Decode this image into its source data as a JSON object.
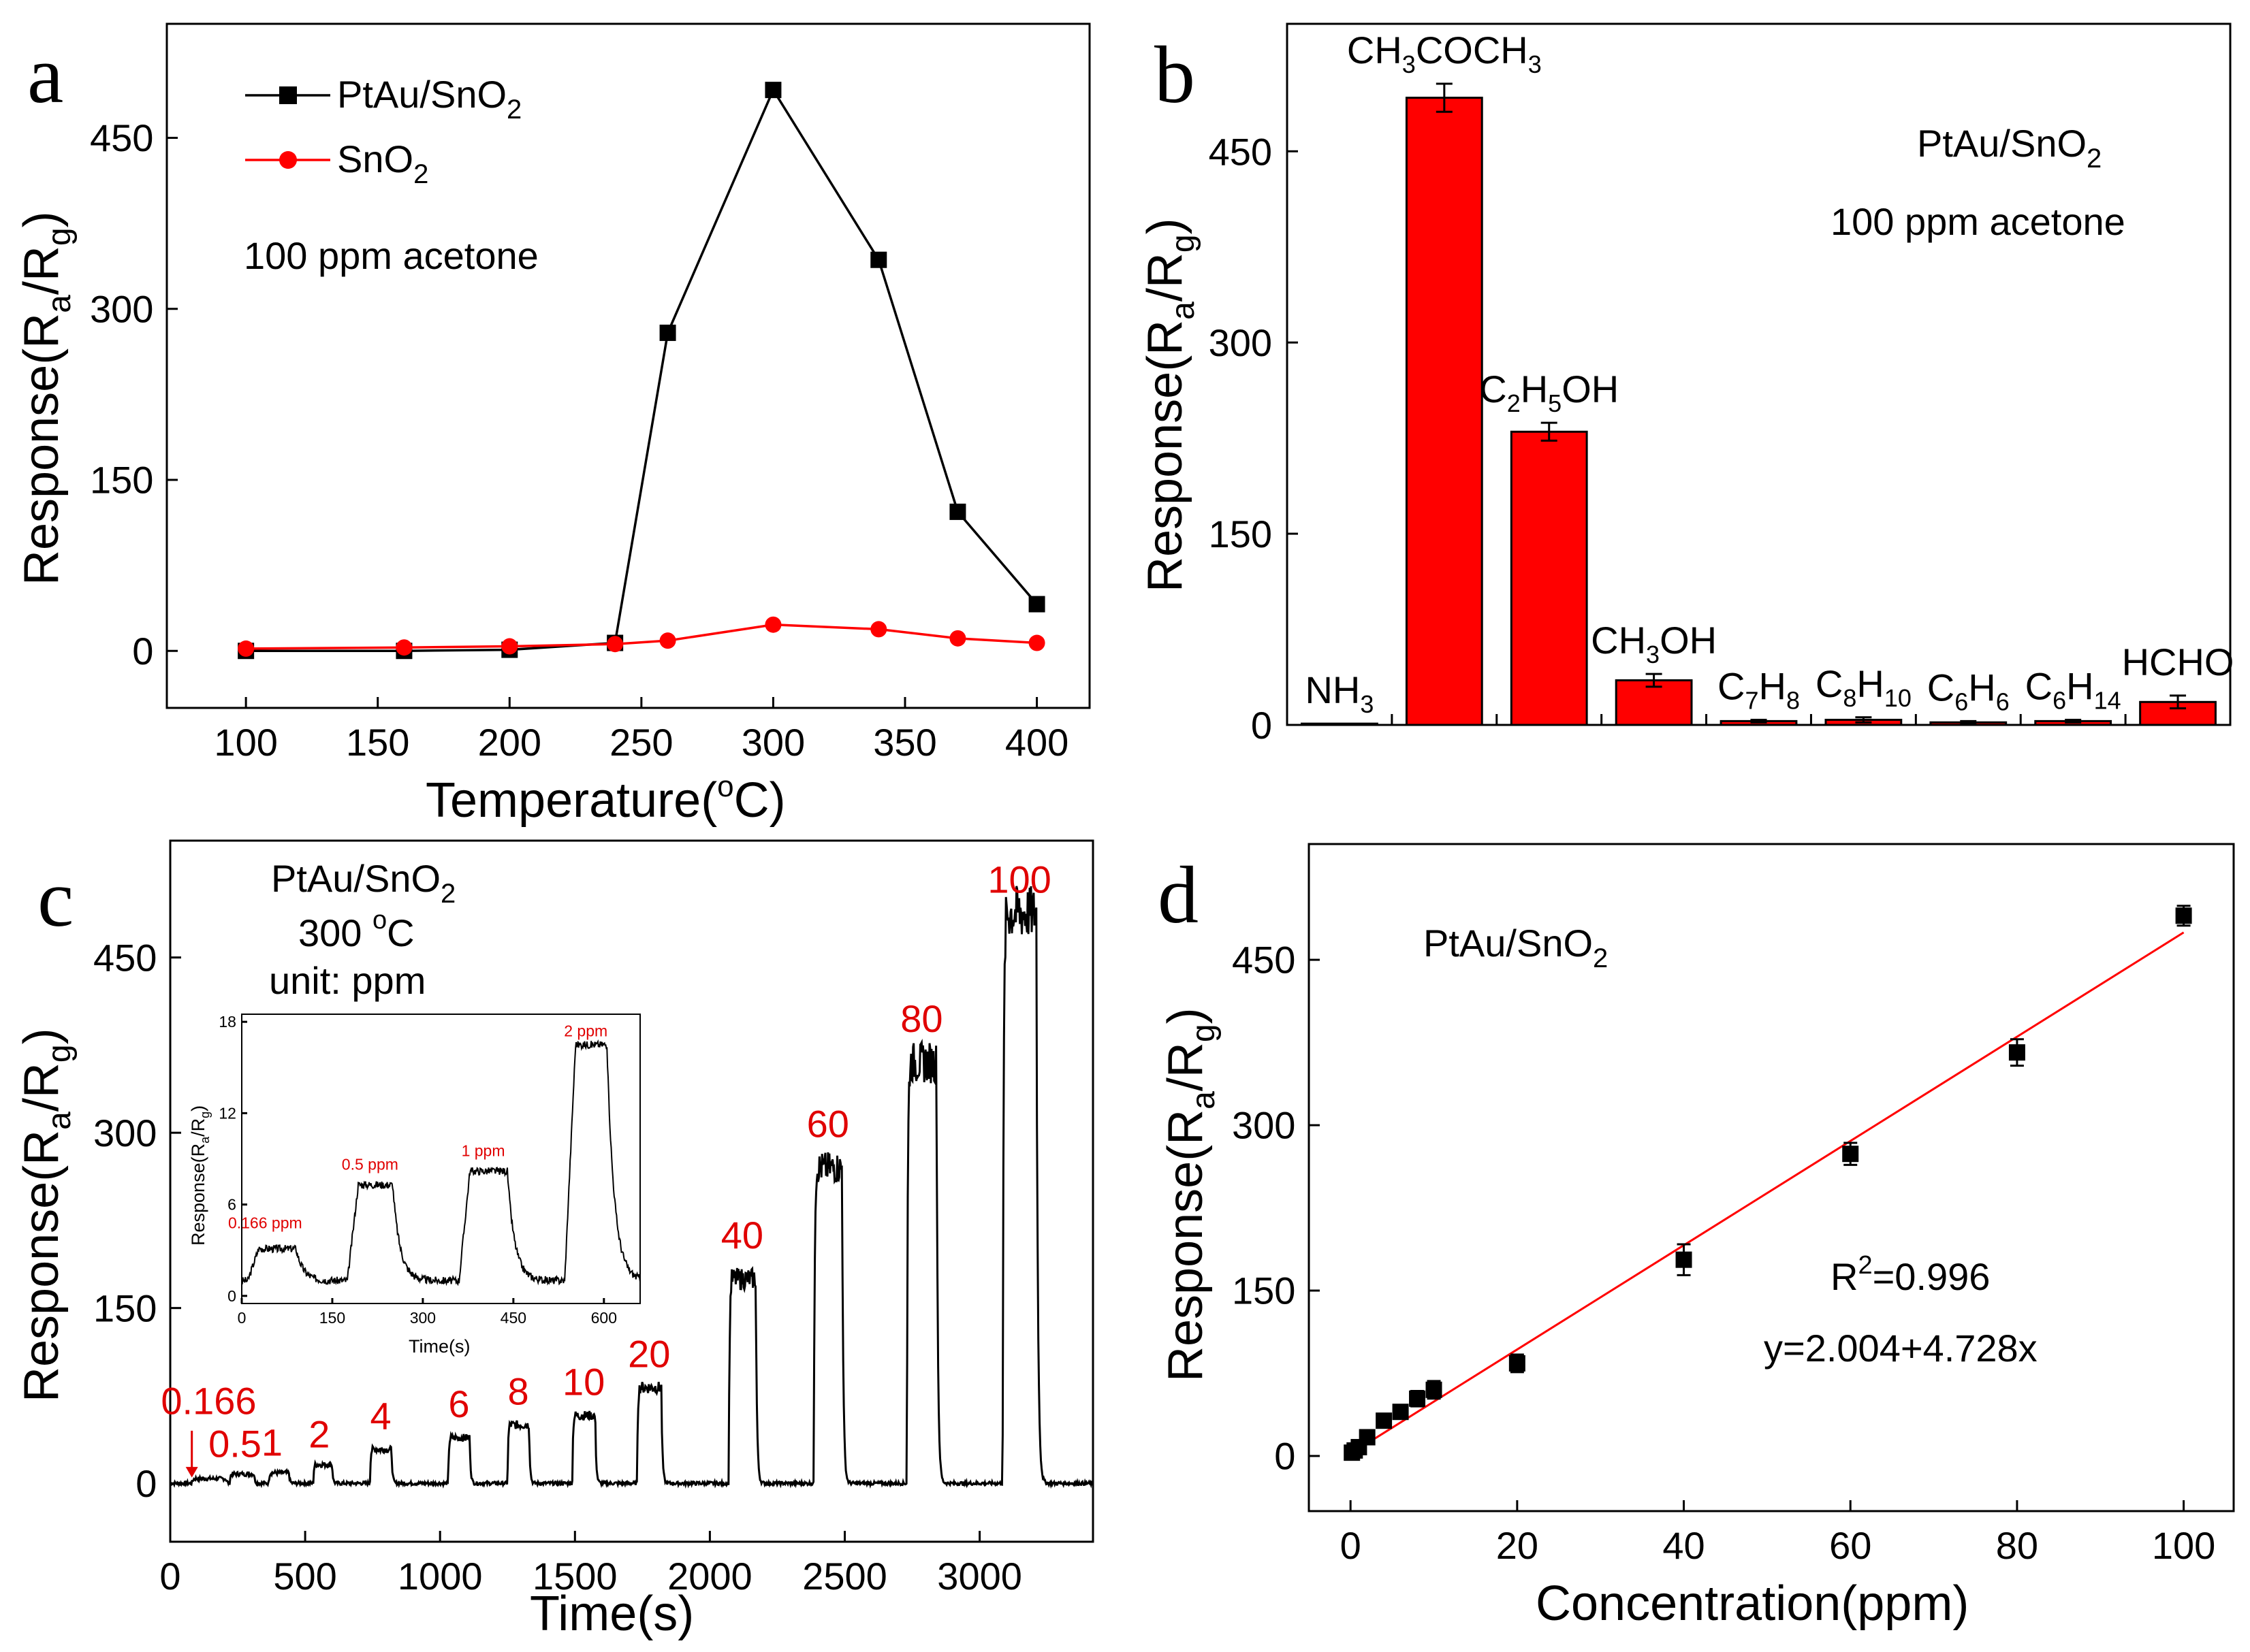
{
  "colors": {
    "black_series": "#000000",
    "red_series": "#ff0000",
    "bar_fill": "#ff0000"
  },
  "chart_data": [
    {
      "panel": "a",
      "type": "line",
      "ylabel_main": "Response(R",
      "ylabel_sub_a": "a",
      "ylabel_mid": "/R",
      "ylabel_sub_g": "g",
      "ylabel_close": ")",
      "xlabel_main": "Temperature(",
      "xlabel_sup": "o",
      "xlabel_end": "C)",
      "xlim": [
        70,
        420
      ],
      "ylim": [
        -50,
        550
      ],
      "xticks": [
        100,
        150,
        200,
        250,
        300,
        350,
        400
      ],
      "yticks": [
        0,
        150,
        300,
        450
      ],
      "annotation": "100 ppm acetone",
      "series": [
        {
          "name": "PtAu/SnO2",
          "legend_main": "PtAu/SnO",
          "legend_sub": "2",
          "color": "#000000",
          "marker": "square",
          "x": [
            100,
            160,
            200,
            240,
            260,
            300,
            340,
            370,
            400
          ],
          "y": [
            0,
            0,
            1,
            7,
            279,
            492,
            343,
            122,
            41
          ]
        },
        {
          "name": "SnO2",
          "legend_main": "SnO",
          "legend_sub": "2",
          "color": "#ff0000",
          "marker": "circle",
          "x": [
            100,
            160,
            200,
            240,
            260,
            300,
            340,
            370,
            400
          ],
          "y": [
            2,
            3,
            4,
            6,
            9,
            23,
            19,
            11,
            7
          ]
        }
      ]
    },
    {
      "panel": "b",
      "type": "bar",
      "ylabel_main": "Response(R",
      "ylabel_sub_a": "a",
      "ylabel_mid": "/R",
      "ylabel_sub_g": "g",
      "ylabel_close": ")",
      "ylim": [
        0,
        550
      ],
      "yticks": [
        0,
        150,
        300,
        450
      ],
      "title_main": "PtAu/SnO",
      "title_sub": "2",
      "annotation": "100 ppm acetone",
      "categories": [
        "NH3",
        "CH3COCH3",
        "C2H5OH",
        "CH3OH",
        "C7H8",
        "C8H10",
        "C6H6",
        "C6H14",
        "HCHO"
      ],
      "category_labels": [
        [
          [
            "NH",
            "n"
          ],
          [
            "3",
            "sub"
          ]
        ],
        [
          [
            "CH",
            "n"
          ],
          [
            "3",
            "sub"
          ],
          [
            "COCH",
            "n"
          ],
          [
            "3",
            "sub"
          ]
        ],
        [
          [
            "C",
            "n"
          ],
          [
            "2",
            "sub"
          ],
          [
            "H",
            "n"
          ],
          [
            "5",
            "sub"
          ],
          [
            "OH",
            "n"
          ]
        ],
        [
          [
            "CH",
            "n"
          ],
          [
            "3",
            "sub"
          ],
          [
            "OH",
            "n"
          ]
        ],
        [
          [
            "C",
            "n"
          ],
          [
            "7",
            "sub"
          ],
          [
            "H",
            "n"
          ],
          [
            "8",
            "sub"
          ]
        ],
        [
          [
            "C",
            "n"
          ],
          [
            "8",
            "sub"
          ],
          [
            "H",
            "n"
          ],
          [
            "10",
            "sub"
          ]
        ],
        [
          [
            "C",
            "n"
          ],
          [
            "6",
            "sub"
          ],
          [
            "H",
            "n"
          ],
          [
            "6",
            "sub"
          ]
        ],
        [
          [
            "C",
            "n"
          ],
          [
            "6",
            "sub"
          ],
          [
            "H",
            "n"
          ],
          [
            "14",
            "sub"
          ]
        ],
        [
          [
            "HCHO",
            "n"
          ]
        ]
      ],
      "values": [
        1,
        492,
        230,
        35,
        3,
        4,
        2,
        3,
        18
      ],
      "errors": [
        0,
        11,
        7,
        5,
        1,
        2,
        1,
        1,
        5
      ]
    },
    {
      "panel": "c",
      "type": "line",
      "ylabel_main": "Response(R",
      "ylabel_sub_a": "a",
      "ylabel_mid": "/R",
      "ylabel_sub_g": "g",
      "ylabel_close": ")",
      "xlabel": "Time(s)",
      "xlim": [
        0,
        3420
      ],
      "ylim": [
        -50,
        550
      ],
      "xticks": [
        0,
        500,
        1000,
        1500,
        2000,
        2500,
        3000
      ],
      "yticks": [
        0,
        150,
        300,
        450
      ],
      "annotation_line1_main": "PtAu/SnO",
      "annotation_line1_sub": "2",
      "annotation_line2_main": "300 ",
      "annotation_line2_sup": "o",
      "annotation_line2_end": "C",
      "annotation_line3": "unit: ppm",
      "pulses": [
        {
          "label": "0.166",
          "start": 80,
          "end": 205,
          "level": 4
        },
        {
          "label": "0.5",
          "start": 220,
          "end": 310,
          "level": 8
        },
        {
          "label": "1",
          "start": 365,
          "end": 440,
          "level": 9
        },
        {
          "label": "2",
          "start": 530,
          "end": 600,
          "level": 16
        },
        {
          "label": "4",
          "start": 740,
          "end": 820,
          "level": 29
        },
        {
          "label": "6",
          "start": 1030,
          "end": 1110,
          "level": 39
        },
        {
          "label": "8",
          "start": 1250,
          "end": 1330,
          "level": 50
        },
        {
          "label": "10",
          "start": 1490,
          "end": 1575,
          "level": 58
        },
        {
          "label": "20",
          "start": 1730,
          "end": 1820,
          "level": 82
        },
        {
          "label": "40",
          "start": 2070,
          "end": 2170,
          "level": 175
        },
        {
          "label": "60",
          "start": 2385,
          "end": 2490,
          "level": 270
        },
        {
          "label": "80",
          "start": 2730,
          "end": 2840,
          "level": 360
        },
        {
          "label": "100",
          "start": 3085,
          "end": 3210,
          "level": 488
        }
      ],
      "inset": {
        "type": "line",
        "ylabel_main": "Response(R",
        "ylabel_sub_a": "a",
        "ylabel_mid": "/R",
        "ylabel_sub_g": "g",
        "ylabel_close": ")",
        "xlabel": "Time(s)",
        "xlim": [
          0,
          660
        ],
        "ylim": [
          -0.5,
          18.5
        ],
        "xticks": [
          0,
          150,
          300,
          450,
          600
        ],
        "yticks": [
          0,
          6,
          12,
          18
        ],
        "pulses": [
          {
            "label": "0.166 ppm",
            "start": 10,
            "end": 90,
            "level": 3.1
          },
          {
            "label": "0.5 ppm",
            "start": 175,
            "end": 250,
            "level": 7.3
          },
          {
            "label": "1 ppm",
            "start": 360,
            "end": 440,
            "level": 8.2
          },
          {
            "label": "2 ppm",
            "start": 535,
            "end": 605,
            "level": 16.5
          }
        ]
      }
    },
    {
      "panel": "d",
      "type": "scatter",
      "ylabel_main": "Response(R",
      "ylabel_sub_a": "a",
      "ylabel_mid": "/R",
      "ylabel_sub_g": "g",
      "ylabel_close": ")",
      "xlabel": "Concentration(ppm)",
      "xlim": [
        -5,
        106
      ],
      "ylim": [
        -50,
        555
      ],
      "xticks": [
        0,
        20,
        40,
        60,
        80,
        100
      ],
      "yticks": [
        0,
        150,
        300,
        450
      ],
      "annotation_main": "PtAu/SnO",
      "annotation_sub": "2",
      "r2_main": "R",
      "r2_sup": "2",
      "r2_value": "=0.996",
      "equation": "y=2.004+4.728x",
      "fit": {
        "intercept": 2.004,
        "slope": 4.728,
        "x_range": [
          0,
          100
        ],
        "color": "#ff0000"
      },
      "x": [
        0.166,
        0.5,
        1,
        2,
        4,
        6,
        8,
        10,
        20,
        40,
        60,
        80,
        100
      ],
      "y": [
        3,
        5,
        8,
        17,
        32,
        40,
        52,
        60,
        84,
        178,
        274,
        366,
        490
      ],
      "errors": [
        2,
        2,
        3,
        5,
        6,
        6,
        7,
        8,
        8,
        14,
        10,
        12,
        9
      ]
    }
  ],
  "panel_letters": [
    "a",
    "b",
    "c",
    "d"
  ]
}
